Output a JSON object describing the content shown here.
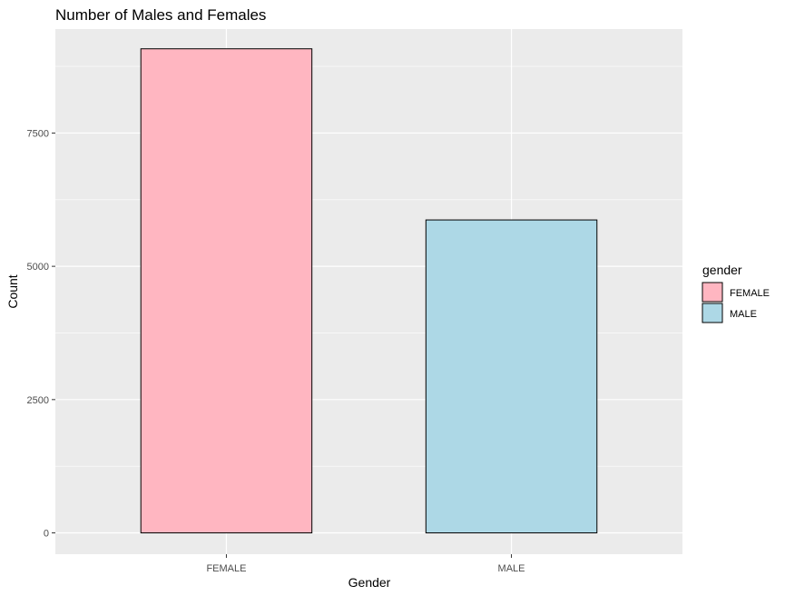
{
  "chart_data": {
    "type": "bar",
    "title": "Number of Males and Females",
    "xlabel": "Gender",
    "ylabel": "Count",
    "categories": [
      "FEMALE",
      "MALE"
    ],
    "values": [
      9080,
      5870
    ],
    "colors": [
      "#ffb6c1",
      "#add8e6"
    ],
    "bar_outline": "#000000",
    "panel_background": "#ebebeb",
    "grid": true,
    "ylim": [
      -400,
      9450
    ],
    "yticks": [
      0,
      2500,
      5000,
      7500
    ],
    "ytick_labels": [
      "0",
      "2500",
      "5000",
      "7500"
    ],
    "legend": {
      "title": "gender",
      "placement": "right",
      "entries": [
        {
          "label": "FEMALE",
          "color": "#ffb6c1"
        },
        {
          "label": "MALE",
          "color": "#add8e6"
        }
      ]
    }
  }
}
